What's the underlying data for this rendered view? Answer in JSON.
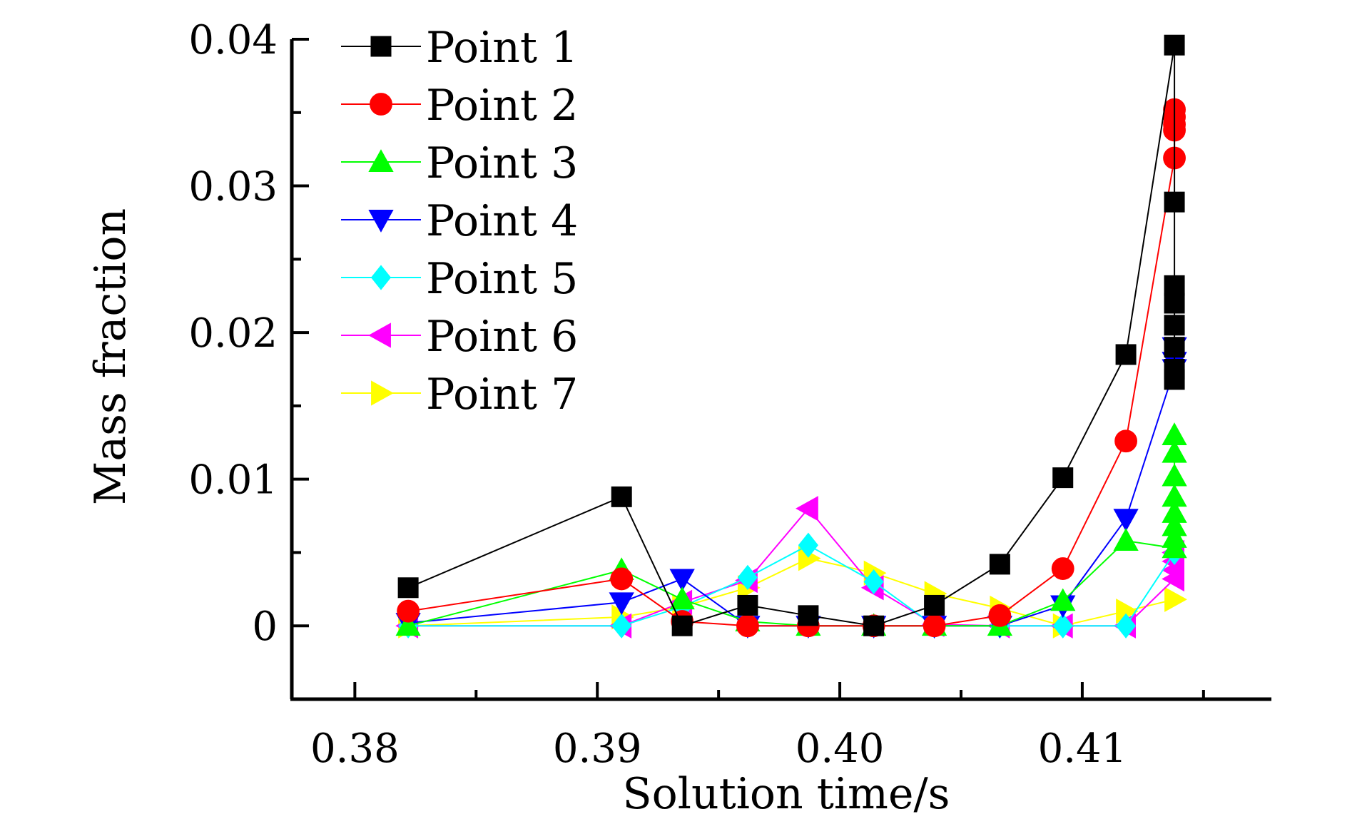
{
  "chart_data": {
    "type": "line",
    "title": "",
    "xlabel": "Solution time/s",
    "ylabel": "Mass fraction",
    "xlim": [
      0.3774,
      0.4178
    ],
    "ylim": [
      -0.005,
      0.04
    ],
    "xticks": [
      0.38,
      0.39,
      0.4,
      0.41
    ],
    "xtick_labels": [
      "0.38",
      "0.39",
      "0.40",
      "0.41"
    ],
    "yticks": [
      0,
      0.01,
      0.02,
      0.03,
      0.04
    ],
    "ytick_labels": [
      "0",
      "0.01",
      "0.02",
      "0.03",
      "0.04"
    ],
    "grid": false,
    "legend_position": "top-left",
    "series": [
      {
        "name": "Point 1",
        "color": "#000000",
        "marker": "square",
        "points": [
          [
            0.3822,
            0.0026
          ],
          [
            0.391,
            0.0088
          ],
          [
            0.3935,
            0.0
          ],
          [
            0.3962,
            0.0014
          ],
          [
            0.3987,
            0.0007
          ],
          [
            0.4014,
            0.0
          ],
          [
            0.4039,
            0.0014
          ],
          [
            0.4066,
            0.0042
          ],
          [
            0.4092,
            0.0101
          ],
          [
            0.4118,
            0.0185
          ],
          [
            0.4138,
            0.0396
          ],
          [
            0.4138,
            0.0289
          ],
          [
            0.4138,
            0.0232
          ],
          [
            0.4138,
            0.022
          ],
          [
            0.4138,
            0.0205
          ],
          [
            0.4138,
            0.019
          ],
          [
            0.4138,
            0.0175
          ],
          [
            0.4138,
            0.0168
          ]
        ]
      },
      {
        "name": "Point 2",
        "color": "#ff0000",
        "marker": "circle",
        "points": [
          [
            0.3822,
            0.001
          ],
          [
            0.391,
            0.0032
          ],
          [
            0.3935,
            0.0003
          ],
          [
            0.3962,
            0.0
          ],
          [
            0.3987,
            0.0
          ],
          [
            0.4014,
            0.0
          ],
          [
            0.4039,
            0.0
          ],
          [
            0.4066,
            0.0007
          ],
          [
            0.4092,
            0.0039
          ],
          [
            0.4118,
            0.0126
          ],
          [
            0.4138,
            0.0319
          ],
          [
            0.4138,
            0.0338
          ],
          [
            0.4138,
            0.0342
          ],
          [
            0.4138,
            0.0347
          ],
          [
            0.4138,
            0.0352
          ]
        ]
      },
      {
        "name": "Point 3",
        "color": "#00ff00",
        "marker": "triangle-up",
        "points": [
          [
            0.3822,
            0.0
          ],
          [
            0.391,
            0.0038
          ],
          [
            0.3935,
            0.0018
          ],
          [
            0.3962,
            0.0003
          ],
          [
            0.3987,
            0.0
          ],
          [
            0.4014,
            0.0
          ],
          [
            0.4039,
            0.0
          ],
          [
            0.4066,
            0.0
          ],
          [
            0.4092,
            0.0017
          ],
          [
            0.4118,
            0.0058
          ],
          [
            0.4138,
            0.0053
          ],
          [
            0.4138,
            0.006
          ],
          [
            0.4138,
            0.0068
          ],
          [
            0.4138,
            0.0077
          ],
          [
            0.4138,
            0.0088
          ],
          [
            0.4138,
            0.0102
          ],
          [
            0.4138,
            0.0118
          ],
          [
            0.4138,
            0.013
          ]
        ]
      },
      {
        "name": "Point 4",
        "color": "#0000ff",
        "marker": "triangle-down",
        "points": [
          [
            0.3822,
            0.0002
          ],
          [
            0.391,
            0.0016
          ],
          [
            0.3935,
            0.0032
          ],
          [
            0.3962,
            0.0
          ],
          [
            0.3987,
            0.0
          ],
          [
            0.4014,
            0.0
          ],
          [
            0.4039,
            0.0
          ],
          [
            0.4066,
            0.0
          ],
          [
            0.4092,
            0.0014
          ],
          [
            0.4118,
            0.0073
          ],
          [
            0.4138,
            0.0175
          ],
          [
            0.4138,
            0.018
          ],
          [
            0.4138,
            0.019
          ]
        ]
      },
      {
        "name": "Point 5",
        "color": "#00ffff",
        "marker": "diamond",
        "points": [
          [
            0.3822,
            0.0
          ],
          [
            0.391,
            0.0
          ],
          [
            0.3935,
            0.0013
          ],
          [
            0.3962,
            0.0033
          ],
          [
            0.3987,
            0.0055
          ],
          [
            0.4014,
            0.003
          ],
          [
            0.4039,
            0.0
          ],
          [
            0.4066,
            0.0
          ],
          [
            0.4092,
            0.0
          ],
          [
            0.4118,
            0.0
          ],
          [
            0.4138,
            0.005
          ]
        ]
      },
      {
        "name": "Point 6",
        "color": "#ff00ff",
        "marker": "triangle-left",
        "points": [
          [
            0.3822,
            0.0
          ],
          [
            0.391,
            0.0
          ],
          [
            0.3935,
            0.0016
          ],
          [
            0.3962,
            0.0031
          ],
          [
            0.3987,
            0.008
          ],
          [
            0.4014,
            0.0026
          ],
          [
            0.4039,
            0.0001
          ],
          [
            0.4066,
            0.0
          ],
          [
            0.4092,
            0.0
          ],
          [
            0.4118,
            0.0
          ],
          [
            0.4138,
            0.0032
          ],
          [
            0.4138,
            0.0038
          ],
          [
            0.4138,
            0.0044
          ],
          [
            0.4138,
            0.005
          ]
        ]
      },
      {
        "name": "Point 7",
        "color": "#ffff00",
        "marker": "triangle-right",
        "points": [
          [
            0.3822,
            0.0
          ],
          [
            0.391,
            0.0006
          ],
          [
            0.3935,
            0.0013
          ],
          [
            0.3962,
            0.0026
          ],
          [
            0.3987,
            0.0046
          ],
          [
            0.4014,
            0.0036
          ],
          [
            0.4039,
            0.0022
          ],
          [
            0.4066,
            0.0012
          ],
          [
            0.4092,
            0.0
          ],
          [
            0.4118,
            0.001
          ],
          [
            0.4138,
            0.0018
          ]
        ]
      }
    ]
  }
}
